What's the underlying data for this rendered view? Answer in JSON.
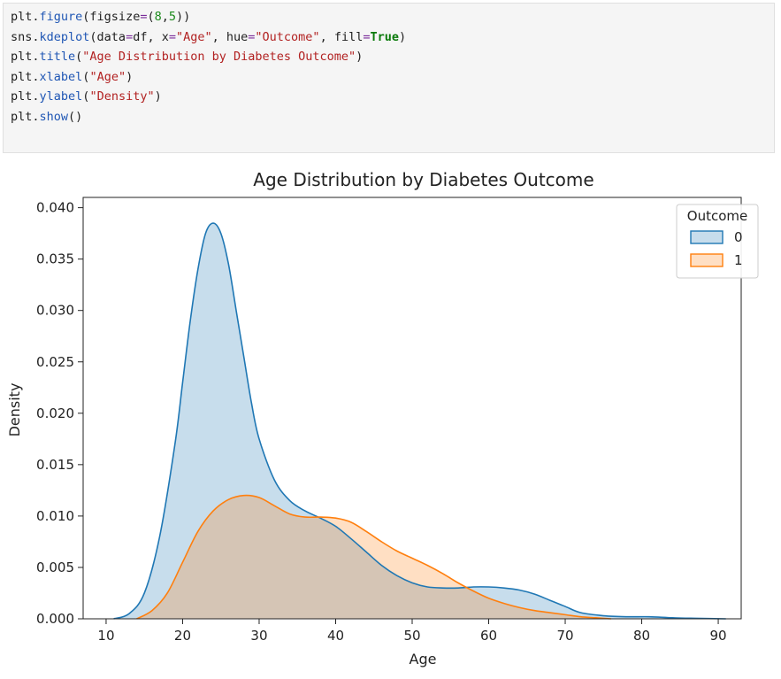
{
  "code_cell": {
    "lines": [
      [
        {
          "t": "plt.",
          "c": ""
        },
        {
          "t": "figure",
          "c": "fn"
        },
        {
          "t": "(figsize",
          "c": ""
        },
        {
          "t": "=",
          "c": "op"
        },
        {
          "t": "(",
          "c": ""
        },
        {
          "t": "8",
          "c": "num"
        },
        {
          "t": ",",
          "c": ""
        },
        {
          "t": "5",
          "c": "num"
        },
        {
          "t": "))",
          "c": ""
        }
      ],
      [
        {
          "t": "sns.",
          "c": ""
        },
        {
          "t": "kdeplot",
          "c": "fn"
        },
        {
          "t": "(data",
          "c": ""
        },
        {
          "t": "=",
          "c": "op"
        },
        {
          "t": "df, x",
          "c": ""
        },
        {
          "t": "=",
          "c": "op"
        },
        {
          "t": "\"Age\"",
          "c": "str"
        },
        {
          "t": ", hue",
          "c": ""
        },
        {
          "t": "=",
          "c": "op"
        },
        {
          "t": "\"Outcome\"",
          "c": "str"
        },
        {
          "t": ", fill",
          "c": ""
        },
        {
          "t": "=",
          "c": "op"
        },
        {
          "t": "True",
          "c": "kw"
        },
        {
          "t": ")",
          "c": ""
        }
      ],
      [
        {
          "t": "plt.",
          "c": ""
        },
        {
          "t": "title",
          "c": "fn"
        },
        {
          "t": "(",
          "c": ""
        },
        {
          "t": "\"Age Distribution by Diabetes Outcome\"",
          "c": "str"
        },
        {
          "t": ")",
          "c": ""
        }
      ],
      [
        {
          "t": "plt.",
          "c": ""
        },
        {
          "t": "xlabel",
          "c": "fn"
        },
        {
          "t": "(",
          "c": ""
        },
        {
          "t": "\"Age\"",
          "c": "str"
        },
        {
          "t": ")",
          "c": ""
        }
      ],
      [
        {
          "t": "plt.",
          "c": ""
        },
        {
          "t": "ylabel",
          "c": "fn"
        },
        {
          "t": "(",
          "c": ""
        },
        {
          "t": "\"Density\"",
          "c": "str"
        },
        {
          "t": ")",
          "c": ""
        }
      ],
      [
        {
          "t": "plt.",
          "c": ""
        },
        {
          "t": "show",
          "c": "fn"
        },
        {
          "t": "()",
          "c": ""
        }
      ]
    ]
  },
  "chart_data": {
    "type": "area",
    "title": "Age Distribution by Diabetes Outcome",
    "xlabel": "Age",
    "ylabel": "Density",
    "xlim": [
      7,
      93
    ],
    "ylim": [
      0,
      0.041
    ],
    "xticks": [
      10,
      20,
      30,
      40,
      50,
      60,
      70,
      80,
      90
    ],
    "yticks": [
      0.0,
      0.005,
      0.01,
      0.015,
      0.02,
      0.025,
      0.03,
      0.035,
      0.04
    ],
    "ytick_labels": [
      "0.000",
      "0.005",
      "0.010",
      "0.015",
      "0.020",
      "0.025",
      "0.030",
      "0.035",
      "0.040"
    ],
    "grid": false,
    "legend": {
      "title": "Outcome",
      "placement": "top-right"
    },
    "series": [
      {
        "name": "0",
        "color": "#1f77b4",
        "x": [
          11,
          13,
          15,
          17,
          19,
          20,
          21,
          22,
          23,
          24,
          25,
          26,
          27,
          28,
          29,
          30,
          32,
          34,
          36,
          38,
          40,
          42,
          44,
          46,
          48,
          50,
          52,
          54,
          56,
          58,
          60,
          62,
          64,
          66,
          68,
          70,
          72,
          75,
          78,
          81,
          84,
          87,
          91
        ],
        "y": [
          0.0,
          0.0005,
          0.0025,
          0.008,
          0.017,
          0.023,
          0.029,
          0.034,
          0.0375,
          0.0385,
          0.0375,
          0.0345,
          0.03,
          0.0255,
          0.021,
          0.0175,
          0.0135,
          0.0115,
          0.0105,
          0.0098,
          0.009,
          0.0078,
          0.0065,
          0.0052,
          0.0042,
          0.0035,
          0.0031,
          0.003,
          0.003,
          0.0031,
          0.0031,
          0.003,
          0.0028,
          0.0024,
          0.0018,
          0.0012,
          0.0006,
          0.0003,
          0.0002,
          0.0002,
          0.0001,
          5e-05,
          0.0
        ]
      },
      {
        "name": "1",
        "color": "#ff7f0e",
        "x": [
          14,
          16,
          18,
          20,
          22,
          24,
          26,
          28,
          30,
          32,
          34,
          36,
          38,
          40,
          42,
          44,
          46,
          48,
          50,
          52,
          54,
          56,
          58,
          60,
          62,
          64,
          66,
          68,
          70,
          72,
          74,
          76
        ],
        "y": [
          0.0,
          0.0008,
          0.0025,
          0.0055,
          0.0085,
          0.0105,
          0.0116,
          0.012,
          0.0118,
          0.011,
          0.0102,
          0.0099,
          0.0099,
          0.0098,
          0.0094,
          0.0085,
          0.0075,
          0.0066,
          0.0059,
          0.0052,
          0.0044,
          0.0035,
          0.0027,
          0.002,
          0.0015,
          0.0011,
          0.0008,
          0.0006,
          0.0004,
          0.0002,
          0.0001,
          0.0
        ]
      }
    ]
  }
}
